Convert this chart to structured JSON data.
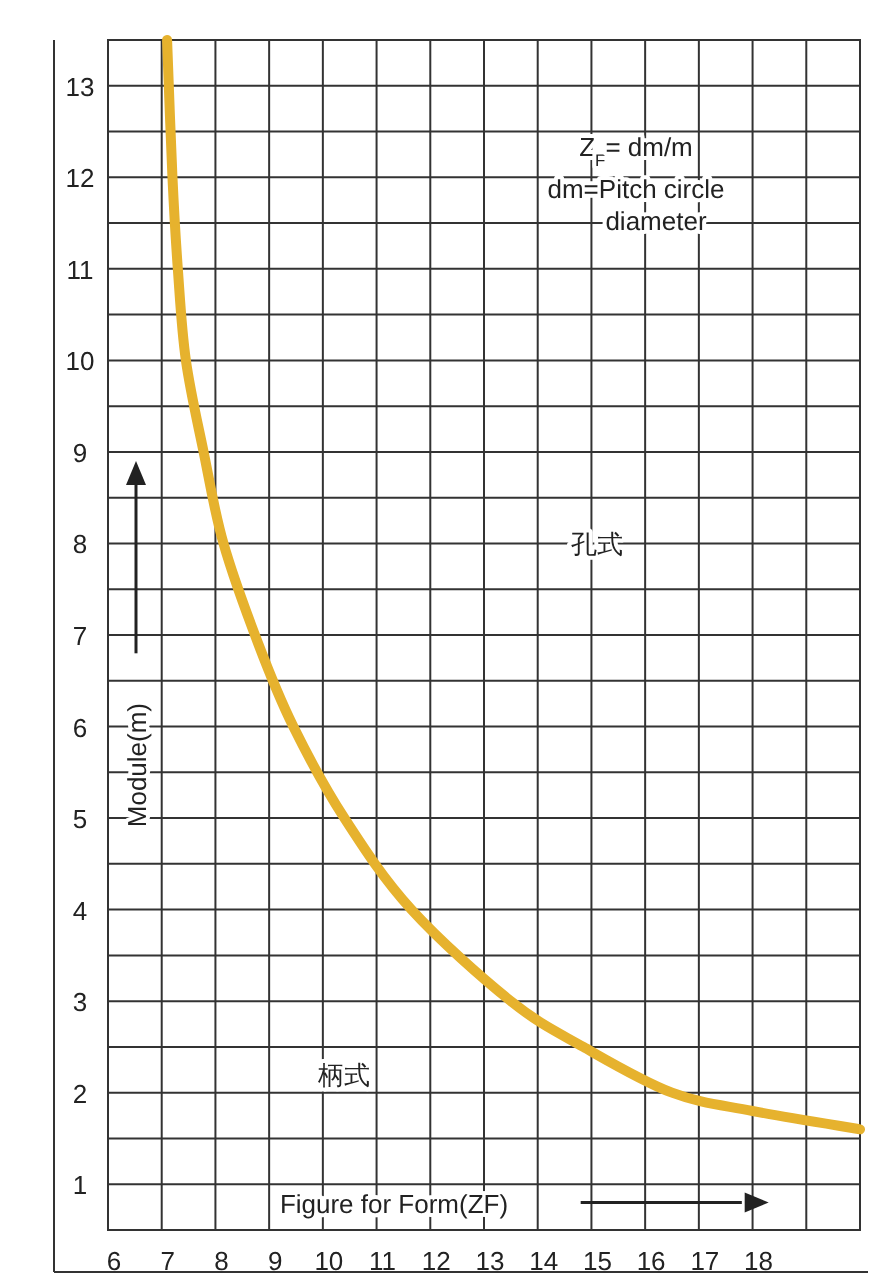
{
  "chart_data": {
    "type": "line",
    "xlabel": "Figure for Form(ZF)",
    "ylabel": "Module(m)",
    "x": [
      7.1,
      7.2,
      7.3,
      7.45,
      7.78,
      8.15,
      8.8,
      9.45,
      10.4,
      11.65,
      13.5,
      14.85,
      16.5,
      18.0,
      20.0
    ],
    "series": [
      {
        "color": "#e6b22e",
        "values": [
          13.5,
          12,
          11,
          10,
          9,
          8,
          6.9,
          6,
          5,
          4,
          3,
          2.5,
          2,
          1.8,
          1.6
        ]
      }
    ],
    "xlim": [
      6,
      20
    ],
    "xticks": [
      6,
      7,
      8,
      9,
      10,
      11,
      12,
      13,
      14,
      15,
      16,
      17,
      18,
      {
        "value": 19,
        "label": null
      }
    ],
    "ylim": [
      0.5,
      13.5
    ],
    "yticks": [
      1,
      {
        "value": 1.5,
        "label": null
      },
      2,
      {
        "value": 2.5,
        "label": null
      },
      3,
      {
        "value": 3.5,
        "label": null
      },
      4,
      {
        "value": 4.5,
        "label": null
      },
      5,
      {
        "value": 5.5,
        "label": null
      },
      6,
      {
        "value": 6.5,
        "label": null
      },
      7,
      {
        "value": 7.5,
        "label": null
      },
      8,
      {
        "value": 8.5,
        "label": null
      },
      9,
      {
        "value": 9.5,
        "label": null
      },
      10,
      {
        "value": 10.5,
        "label": null
      },
      11,
      {
        "value": 11.5,
        "label": null
      },
      12,
      {
        "value": 12.5,
        "label": null
      },
      13
    ],
    "grid": true,
    "marker": "none",
    "line_style": "solid",
    "annotations": [
      "Z$_{F}$= dm/m",
      "dm=Pitch circle diameter",
      "孔式",
      "柄式"
    ]
  }
}
